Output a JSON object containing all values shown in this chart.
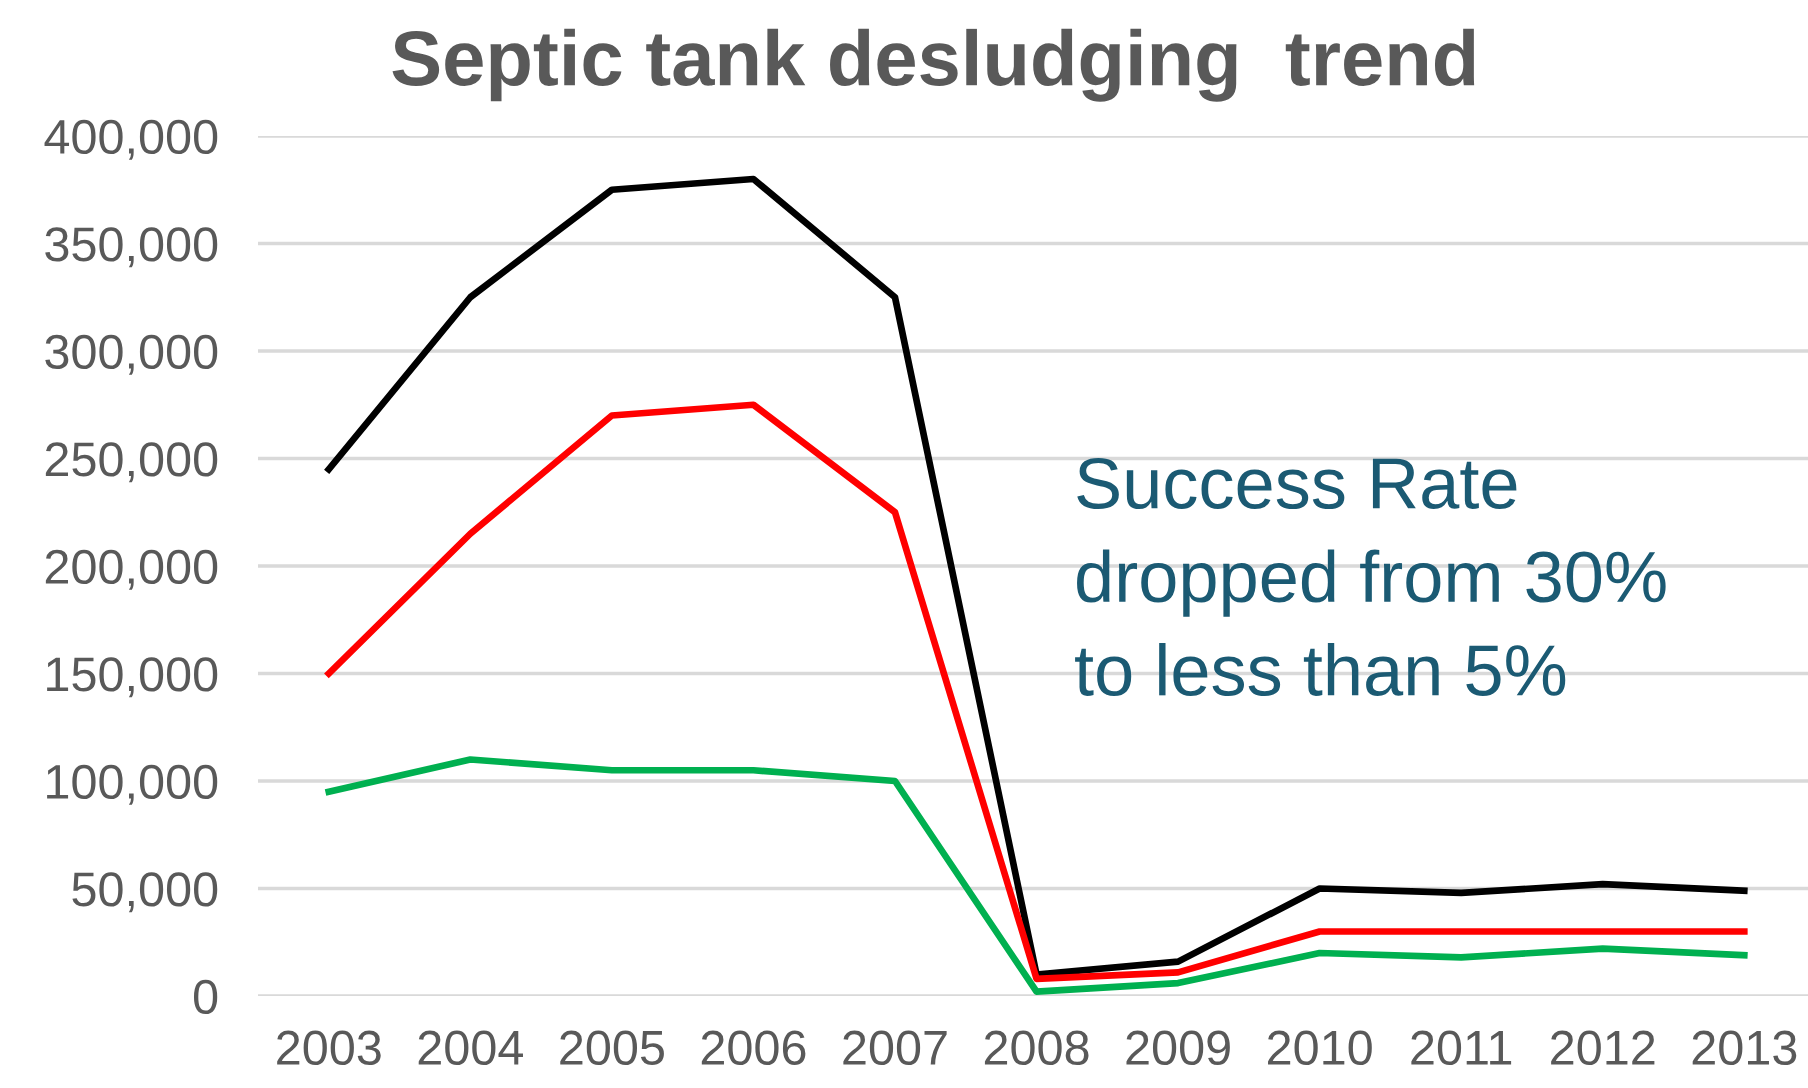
{
  "chart_data": {
    "type": "line",
    "title": "Septic tank desludging  trend",
    "categories": [
      "2003",
      "2004",
      "2005",
      "2006",
      "2007",
      "2008",
      "2009",
      "2010",
      "2011",
      "2012",
      "2013"
    ],
    "series": [
      {
        "color": "#000000",
        "values": [
          245000,
          325000,
          375000,
          380000,
          325000,
          10000,
          16000,
          50000,
          48000,
          52000,
          49000
        ]
      },
      {
        "color": "#ff0000",
        "values": [
          150000,
          215000,
          270000,
          275000,
          225000,
          8000,
          11000,
          30000,
          30000,
          30000,
          30000
        ]
      },
      {
        "color": "#00b050",
        "values": [
          95000,
          110000,
          105000,
          105000,
          100000,
          2000,
          6000,
          20000,
          18000,
          22000,
          19000
        ]
      }
    ],
    "ylim": [
      0,
      400000
    ],
    "yticks": [
      {
        "value": 0,
        "label": "0"
      },
      {
        "value": 50000,
        "label": "50,000"
      },
      {
        "value": 100000,
        "label": "100,000"
      },
      {
        "value": 150000,
        "label": "150,000"
      },
      {
        "value": 200000,
        "label": "200,000"
      },
      {
        "value": 250000,
        "label": "250,000"
      },
      {
        "value": 300000,
        "label": "300,000"
      },
      {
        "value": 350000,
        "label": "350,000"
      },
      {
        "value": 400000,
        "label": "400,000"
      }
    ],
    "grid": "y",
    "marker": "none",
    "line_style": "solid",
    "annotations": [
      "Success Rate\ndropped from 30%\nto less than 5%"
    ]
  }
}
